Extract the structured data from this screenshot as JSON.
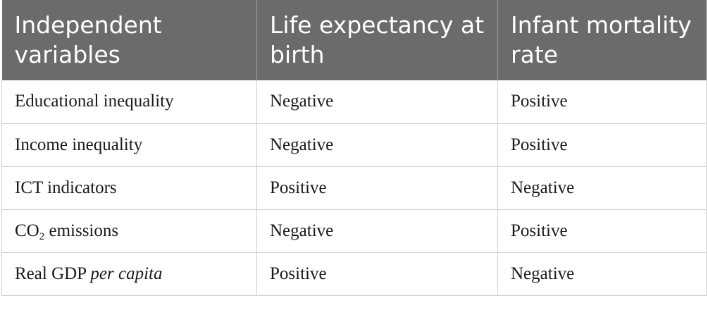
{
  "header": {
    "col1": "Independent variables",
    "col2": "Life expectancy at birth",
    "col3": "Infant mortality rate"
  },
  "rows": [
    {
      "variable": "Educational inequality",
      "life_expectancy": "Negative",
      "infant_mortality": "Positive"
    },
    {
      "variable": "Income inequality",
      "life_expectancy": "Negative",
      "infant_mortality": "Positive"
    },
    {
      "variable": "ICT indicators",
      "life_expectancy": "Positive",
      "infant_mortality": "Negative"
    },
    {
      "variable_main": "CO",
      "variable_sub": "2",
      "variable_rest": " emissions",
      "life_expectancy": "Negative",
      "infant_mortality": "Positive"
    },
    {
      "variable_main": "Real GDP ",
      "variable_italic": "per capita",
      "life_expectancy": "Positive",
      "infant_mortality": "Negative"
    }
  ],
  "colors": {
    "header_bg": "#6b6b6b",
    "header_text": "#ffffff",
    "grid": "#cfcfcf"
  }
}
